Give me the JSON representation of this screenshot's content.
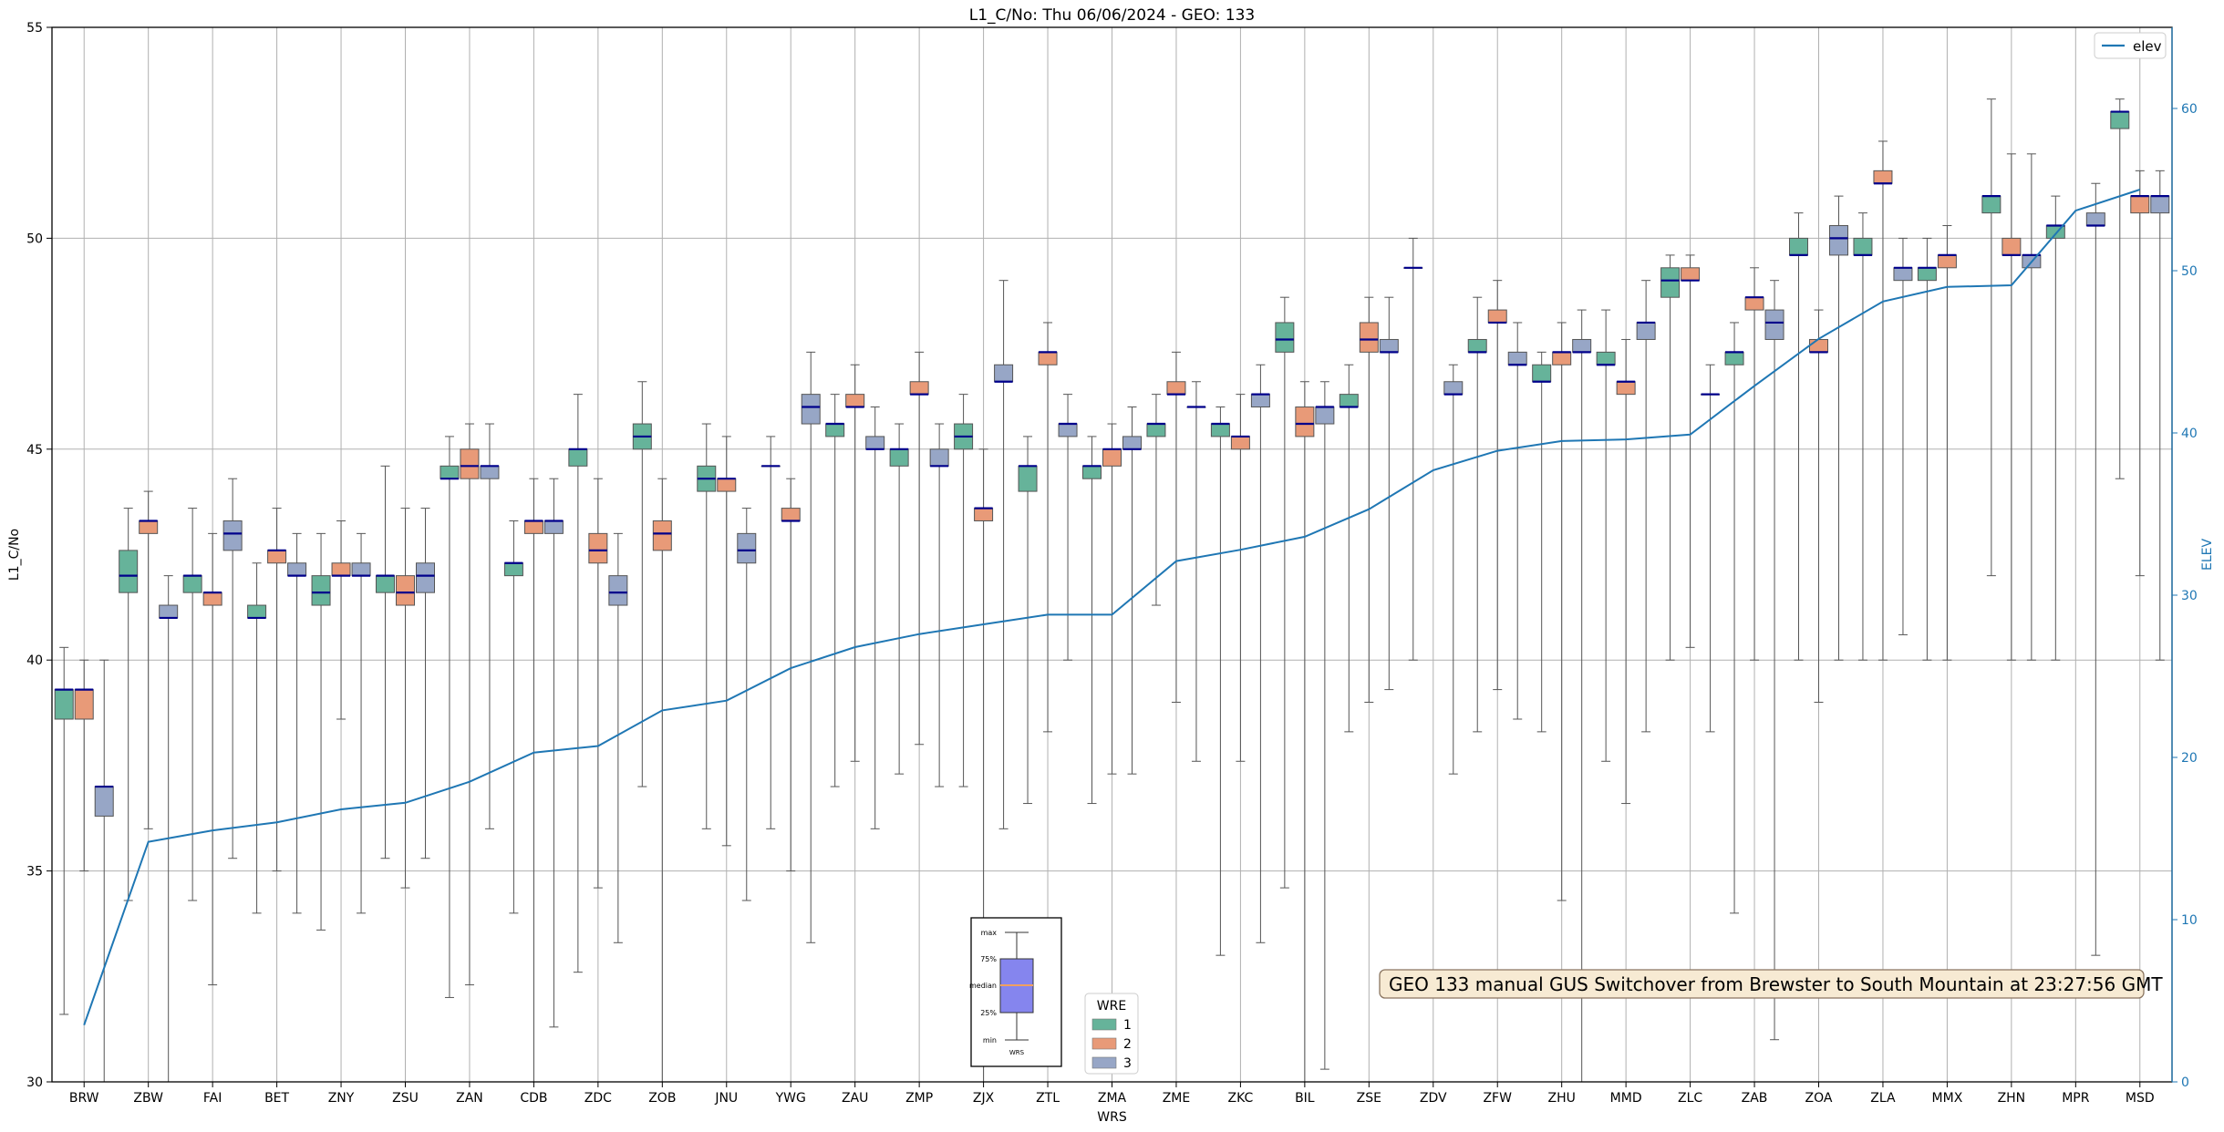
{
  "chart_data": {
    "type": "box",
    "title": "L1_C/No: Thu 06/06/2024 - GEO: 133",
    "xlabel": "WRS",
    "ylabel": "L1_C/No",
    "y2label": "ELEV",
    "ylim": [
      30,
      55
    ],
    "y2lim": [
      0,
      65
    ],
    "yticks": [
      30,
      35,
      40,
      45,
      50,
      55
    ],
    "y2ticks": [
      0,
      10,
      20,
      30,
      40,
      50,
      60
    ],
    "grid": true,
    "categories": [
      "BRW",
      "ZBW",
      "FAI",
      "BET",
      "ZNY",
      "ZSU",
      "ZAN",
      "CDB",
      "ZDC",
      "ZOB",
      "JNU",
      "YWG",
      "ZAU",
      "ZMP",
      "ZJX",
      "ZTL",
      "ZMA",
      "ZME",
      "ZKC",
      "BIL",
      "ZSE",
      "ZDV",
      "ZFW",
      "ZHU",
      "MMD",
      "ZLC",
      "ZAB",
      "ZOA",
      "ZLA",
      "MMX",
      "ZHN",
      "MPR",
      "MSD"
    ],
    "wre_colors": {
      "1": "#66b39a",
      "2": "#e89a78",
      "3": "#97a6c6"
    },
    "median_color": "#00008b",
    "series": [
      {
        "name": "1",
        "boxes": [
          {
            "cat": "BRW",
            "min": 31.6,
            "q1": 38.6,
            "median": 39.3,
            "q3": 39.3,
            "max": 40.3
          },
          {
            "cat": "ZBW",
            "min": 34.3,
            "q1": 41.6,
            "median": 42.0,
            "q3": 42.6,
            "max": 43.6
          },
          {
            "cat": "FAI",
            "min": 34.3,
            "q1": 41.6,
            "median": 42.0,
            "q3": 42.0,
            "max": 43.6
          },
          {
            "cat": "BET",
            "min": 34.0,
            "q1": 41.0,
            "median": 41.0,
            "q3": 41.3,
            "max": 42.3
          },
          {
            "cat": "ZNY",
            "min": 33.6,
            "q1": 41.3,
            "median": 41.6,
            "q3": 42.0,
            "max": 43.0
          },
          {
            "cat": "ZSU",
            "min": 35.3,
            "q1": 41.6,
            "median": 42.0,
            "q3": 42.0,
            "max": 44.6
          },
          {
            "cat": "ZAN",
            "min": 32.0,
            "q1": 44.3,
            "median": 44.3,
            "q3": 44.6,
            "max": 45.3
          },
          {
            "cat": "CDB",
            "min": 34.0,
            "q1": 42.0,
            "median": 42.3,
            "q3": 42.3,
            "max": 43.3
          },
          {
            "cat": "ZDC",
            "min": 32.6,
            "q1": 44.6,
            "median": 45.0,
            "q3": 45.0,
            "max": 46.3
          },
          {
            "cat": "ZOB",
            "min": 37.0,
            "q1": 45.0,
            "median": 45.3,
            "q3": 45.6,
            "max": 46.6
          },
          {
            "cat": "JNU",
            "min": 36.0,
            "q1": 44.0,
            "median": 44.3,
            "q3": 44.6,
            "max": 45.6
          },
          {
            "cat": "YWG",
            "min": 36.0,
            "q1": 44.6,
            "median": 44.6,
            "q3": 44.6,
            "max": 45.3
          },
          {
            "cat": "ZAU",
            "min": 37.0,
            "q1": 45.3,
            "median": 45.6,
            "q3": 45.6,
            "max": 46.3
          },
          {
            "cat": "ZMP",
            "min": 37.3,
            "q1": 44.6,
            "median": 45.0,
            "q3": 45.0,
            "max": 45.6
          },
          {
            "cat": "ZJX",
            "min": 37.0,
            "q1": 45.0,
            "median": 45.3,
            "q3": 45.6,
            "max": 46.3
          },
          {
            "cat": "ZTL",
            "min": 36.6,
            "q1": 44.0,
            "median": 44.6,
            "q3": 44.6,
            "max": 45.3
          },
          {
            "cat": "ZMA",
            "min": 36.6,
            "q1": 44.3,
            "median": 44.6,
            "q3": 44.6,
            "max": 45.3
          },
          {
            "cat": "ZME",
            "min": 41.3,
            "q1": 45.3,
            "median": 45.6,
            "q3": 45.6,
            "max": 46.3
          },
          {
            "cat": "ZKC",
            "min": 33.0,
            "q1": 45.3,
            "median": 45.6,
            "q3": 45.6,
            "max": 46.0
          },
          {
            "cat": "BIL",
            "min": 34.6,
            "q1": 47.3,
            "median": 47.6,
            "q3": 48.0,
            "max": 48.6
          },
          {
            "cat": "ZSE",
            "min": 38.3,
            "q1": 46.0,
            "median": 46.0,
            "q3": 46.3,
            "max": 47.0
          },
          {
            "cat": "ZDV",
            "min": 40.0,
            "q1": 49.3,
            "median": 49.3,
            "q3": 49.3,
            "max": 50.0
          },
          {
            "cat": "ZFW",
            "min": 38.3,
            "q1": 47.3,
            "median": 47.3,
            "q3": 47.6,
            "max": 48.6
          },
          {
            "cat": "ZHU",
            "min": 38.3,
            "q1": 46.6,
            "median": 46.6,
            "q3": 47.0,
            "max": 47.3
          },
          {
            "cat": "MMD",
            "min": 37.6,
            "q1": 47.0,
            "median": 47.0,
            "q3": 47.3,
            "max": 48.3
          },
          {
            "cat": "ZLC",
            "min": 40.0,
            "q1": 48.6,
            "median": 49.0,
            "q3": 49.3,
            "max": 49.6
          },
          {
            "cat": "ZAB",
            "min": 34.0,
            "q1": 47.0,
            "median": 47.3,
            "q3": 47.3,
            "max": 48.0
          },
          {
            "cat": "ZOA",
            "min": 40.0,
            "q1": 49.6,
            "median": 49.6,
            "q3": 50.0,
            "max": 50.6
          },
          {
            "cat": "ZLA",
            "min": 40.0,
            "q1": 49.6,
            "median": 49.6,
            "q3": 50.0,
            "max": 50.6
          },
          {
            "cat": "MMX",
            "min": 40.0,
            "q1": 49.0,
            "median": 49.3,
            "q3": 49.3,
            "max": 50.0
          },
          {
            "cat": "ZHN",
            "min": 42.0,
            "q1": 50.6,
            "median": 51.0,
            "q3": 51.0,
            "max": 53.3
          },
          {
            "cat": "MPR",
            "min": 40.0,
            "q1": 50.0,
            "median": 50.3,
            "q3": 50.3,
            "max": 51.0
          },
          {
            "cat": "MSD",
            "min": 44.3,
            "q1": 52.6,
            "median": 53.0,
            "q3": 53.0,
            "max": 53.3
          }
        ]
      },
      {
        "name": "2",
        "boxes": [
          {
            "cat": "BRW",
            "min": 35.0,
            "q1": 38.6,
            "median": 39.3,
            "q3": 39.3,
            "max": 40.0
          },
          {
            "cat": "ZBW",
            "min": 36.0,
            "q1": 43.0,
            "median": 43.3,
            "q3": 43.3,
            "max": 44.0
          },
          {
            "cat": "FAI",
            "min": 32.3,
            "q1": 41.3,
            "median": 41.6,
            "q3": 41.6,
            "max": 43.0
          },
          {
            "cat": "BET",
            "min": 35.0,
            "q1": 42.3,
            "median": 42.6,
            "q3": 42.6,
            "max": 43.6
          },
          {
            "cat": "ZNY",
            "min": 38.6,
            "q1": 42.0,
            "median": 42.0,
            "q3": 42.3,
            "max": 43.3
          },
          {
            "cat": "ZSU",
            "min": 34.6,
            "q1": 41.3,
            "median": 41.6,
            "q3": 42.0,
            "max": 43.6
          },
          {
            "cat": "ZAN",
            "min": 32.3,
            "q1": 44.3,
            "median": 44.6,
            "q3": 45.0,
            "max": 45.6
          },
          {
            "cat": "CDB",
            "min": 29.0,
            "q1": 43.0,
            "median": 43.3,
            "q3": 43.3,
            "max": 44.3
          },
          {
            "cat": "ZDC",
            "min": 34.6,
            "q1": 42.3,
            "median": 42.6,
            "q3": 43.0,
            "max": 44.3
          },
          {
            "cat": "ZOB",
            "min": 29.0,
            "q1": 42.6,
            "median": 43.0,
            "q3": 43.3,
            "max": 44.3
          },
          {
            "cat": "JNU",
            "min": 35.6,
            "q1": 44.0,
            "median": 44.3,
            "q3": 44.3,
            "max": 45.3
          },
          {
            "cat": "YWG",
            "min": 35.0,
            "q1": 43.3,
            "median": 43.3,
            "q3": 43.6,
            "max": 44.3
          },
          {
            "cat": "ZAU",
            "min": 37.6,
            "q1": 46.0,
            "median": 46.0,
            "q3": 46.3,
            "max": 47.0
          },
          {
            "cat": "ZMP",
            "min": 38.0,
            "q1": 46.3,
            "median": 46.3,
            "q3": 46.6,
            "max": 47.3
          },
          {
            "cat": "ZJX",
            "min": 29.0,
            "q1": 43.3,
            "median": 43.6,
            "q3": 43.6,
            "max": 45.0
          },
          {
            "cat": "ZTL",
            "min": 38.3,
            "q1": 47.0,
            "median": 47.3,
            "q3": 47.3,
            "max": 48.0
          },
          {
            "cat": "ZMA",
            "min": 37.3,
            "q1": 44.6,
            "median": 45.0,
            "q3": 45.0,
            "max": 45.6
          },
          {
            "cat": "ZME",
            "min": 39.0,
            "q1": 46.3,
            "median": 46.3,
            "q3": 46.6,
            "max": 47.3
          },
          {
            "cat": "ZKC",
            "min": 37.6,
            "q1": 45.0,
            "median": 45.3,
            "q3": 45.3,
            "max": 46.3
          },
          {
            "cat": "BIL",
            "min": 29.0,
            "q1": 45.3,
            "median": 45.6,
            "q3": 46.0,
            "max": 46.6
          },
          {
            "cat": "ZSE",
            "min": 39.0,
            "q1": 47.3,
            "median": 47.6,
            "q3": 48.0,
            "max": 48.6
          },
          {
            "cat": "ZFW",
            "min": 39.3,
            "q1": 48.0,
            "median": 48.0,
            "q3": 48.3,
            "max": 49.0
          },
          {
            "cat": "ZHU",
            "min": 34.3,
            "q1": 47.0,
            "median": 47.3,
            "q3": 47.3,
            "max": 48.0
          },
          {
            "cat": "MMD",
            "min": 36.6,
            "q1": 46.3,
            "median": 46.6,
            "q3": 46.6,
            "max": 47.6
          },
          {
            "cat": "ZLC",
            "min": 40.3,
            "q1": 49.0,
            "median": 49.0,
            "q3": 49.3,
            "max": 49.6
          },
          {
            "cat": "ZAB",
            "min": 40.0,
            "q1": 48.3,
            "median": 48.6,
            "q3": 48.6,
            "max": 49.3
          },
          {
            "cat": "ZOA",
            "min": 39.0,
            "q1": 47.3,
            "median": 47.3,
            "q3": 47.6,
            "max": 48.3
          },
          {
            "cat": "ZLA",
            "min": 40.0,
            "q1": 51.3,
            "median": 51.3,
            "q3": 51.6,
            "max": 52.3
          },
          {
            "cat": "MMX",
            "min": 40.0,
            "q1": 49.3,
            "median": 49.6,
            "q3": 49.6,
            "max": 50.3
          },
          {
            "cat": "ZHN",
            "min": 40.0,
            "q1": 49.6,
            "median": 49.6,
            "q3": 50.0,
            "max": 52.0
          },
          {
            "cat": "MSD",
            "min": 42.0,
            "q1": 50.6,
            "median": 51.0,
            "q3": 51.0,
            "max": 51.6
          }
        ]
      },
      {
        "name": "3",
        "boxes": [
          {
            "cat": "BRW",
            "min": 29.0,
            "q1": 36.3,
            "median": 37.0,
            "q3": 37.0,
            "max": 40.0
          },
          {
            "cat": "ZBW",
            "min": 29.0,
            "q1": 41.0,
            "median": 41.0,
            "q3": 41.3,
            "max": 42.0
          },
          {
            "cat": "FAI",
            "min": 35.3,
            "q1": 42.6,
            "median": 43.0,
            "q3": 43.3,
            "max": 44.3
          },
          {
            "cat": "BET",
            "min": 34.0,
            "q1": 42.0,
            "median": 42.0,
            "q3": 42.3,
            "max": 43.0
          },
          {
            "cat": "ZNY",
            "min": 34.0,
            "q1": 42.0,
            "median": 42.0,
            "q3": 42.3,
            "max": 43.0
          },
          {
            "cat": "ZSU",
            "min": 35.3,
            "q1": 41.6,
            "median": 42.0,
            "q3": 42.3,
            "max": 43.6
          },
          {
            "cat": "ZAN",
            "min": 36.0,
            "q1": 44.3,
            "median": 44.6,
            "q3": 44.6,
            "max": 45.6
          },
          {
            "cat": "CDB",
            "min": 31.3,
            "q1": 43.0,
            "median": 43.3,
            "q3": 43.3,
            "max": 44.3
          },
          {
            "cat": "ZDC",
            "min": 33.3,
            "q1": 41.3,
            "median": 41.6,
            "q3": 42.0,
            "max": 43.0
          },
          {
            "cat": "JNU",
            "min": 34.3,
            "q1": 42.3,
            "median": 42.6,
            "q3": 43.0,
            "max": 43.6
          },
          {
            "cat": "YWG",
            "min": 33.3,
            "q1": 45.6,
            "median": 46.0,
            "q3": 46.3,
            "max": 47.3
          },
          {
            "cat": "ZAU",
            "min": 36.0,
            "q1": 45.0,
            "median": 45.0,
            "q3": 45.3,
            "max": 46.0
          },
          {
            "cat": "ZMP",
            "min": 37.0,
            "q1": 44.6,
            "median": 44.6,
            "q3": 45.0,
            "max": 45.6
          },
          {
            "cat": "ZJX",
            "min": 36.0,
            "q1": 46.6,
            "median": 46.6,
            "q3": 47.0,
            "max": 49.0
          },
          {
            "cat": "ZTL",
            "min": 40.0,
            "q1": 45.3,
            "median": 45.6,
            "q3": 45.6,
            "max": 46.3
          },
          {
            "cat": "ZMA",
            "min": 37.3,
            "q1": 45.0,
            "median": 45.0,
            "q3": 45.3,
            "max": 46.0
          },
          {
            "cat": "ZME",
            "min": 37.6,
            "q1": 46.0,
            "median": 46.0,
            "q3": 46.0,
            "max": 46.6
          },
          {
            "cat": "ZKC",
            "min": 33.3,
            "q1": 46.0,
            "median": 46.3,
            "q3": 46.3,
            "max": 47.0
          },
          {
            "cat": "BIL",
            "min": 30.3,
            "q1": 45.6,
            "median": 46.0,
            "q3": 46.0,
            "max": 46.6
          },
          {
            "cat": "ZSE",
            "min": 39.3,
            "q1": 47.3,
            "median": 47.3,
            "q3": 47.6,
            "max": 48.6
          },
          {
            "cat": "ZDV",
            "min": 37.3,
            "q1": 46.3,
            "median": 46.3,
            "q3": 46.6,
            "max": 47.0
          },
          {
            "cat": "ZFW",
            "min": 38.6,
            "q1": 47.0,
            "median": 47.0,
            "q3": 47.3,
            "max": 48.0
          },
          {
            "cat": "ZHU",
            "min": 29.0,
            "q1": 47.3,
            "median": 47.3,
            "q3": 47.6,
            "max": 48.3
          },
          {
            "cat": "MMD",
            "min": 38.3,
            "q1": 47.6,
            "median": 48.0,
            "q3": 48.0,
            "max": 49.0
          },
          {
            "cat": "ZLC",
            "min": 38.3,
            "q1": 46.3,
            "median": 46.3,
            "q3": 46.3,
            "max": 47.0
          },
          {
            "cat": "ZAB",
            "min": 31.0,
            "q1": 47.6,
            "median": 48.0,
            "q3": 48.3,
            "max": 49.0
          },
          {
            "cat": "ZOA",
            "min": 40.0,
            "q1": 49.6,
            "median": 50.0,
            "q3": 50.3,
            "max": 51.0
          },
          {
            "cat": "ZLA",
            "min": 40.6,
            "q1": 49.0,
            "median": 49.3,
            "q3": 49.3,
            "max": 50.0
          },
          {
            "cat": "ZHN",
            "min": 40.0,
            "q1": 49.3,
            "median": 49.6,
            "q3": 49.6,
            "max": 52.0
          },
          {
            "cat": "MPR",
            "min": 33.0,
            "q1": 50.3,
            "median": 50.3,
            "q3": 50.6,
            "max": 51.3
          },
          {
            "cat": "MSD",
            "min": 40.0,
            "q1": 50.6,
            "median": 51.0,
            "q3": 51.0,
            "max": 51.6
          }
        ]
      }
    ],
    "elev_line": {
      "name": "elev",
      "color": "#1f77b4",
      "values": [
        3.5,
        14.8,
        15.5,
        16.0,
        16.8,
        17.2,
        18.5,
        20.3,
        20.7,
        22.9,
        23.5,
        25.5,
        26.8,
        27.6,
        28.2,
        28.8,
        28.8,
        32.1,
        32.8,
        33.6,
        35.3,
        37.7,
        38.9,
        39.5,
        39.6,
        39.9,
        42.9,
        45.8,
        48.1,
        49.0,
        49.1,
        53.7,
        55.0
      ]
    },
    "legend": {
      "position": "top-right",
      "label": "elev"
    },
    "wre_legend": {
      "title": "WRE",
      "labels": [
        "1",
        "2",
        "3"
      ]
    },
    "inset_legend": {
      "labels": [
        "max",
        "75%",
        "median",
        "25%",
        "min"
      ],
      "xlabel": "WRS"
    },
    "annotation": "GEO 133 manual GUS Switchover from Brewster to South Mountain at 23:27:56 GMT"
  }
}
